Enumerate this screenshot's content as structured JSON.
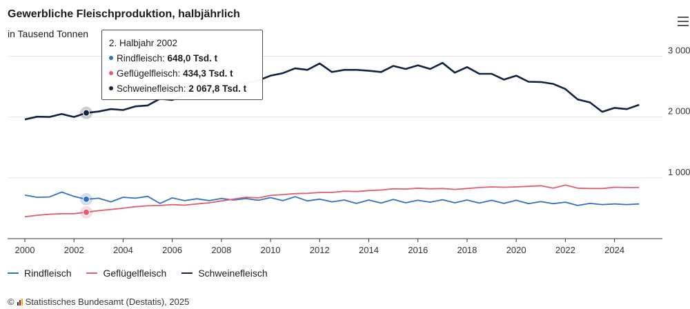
{
  "colors": {
    "rind": "#2e6fc7",
    "gefluegel": "#e05d6f",
    "schwein": "#0f2240",
    "grid": "#e6e6e6",
    "axis": "#333333"
  },
  "chart_data": {
    "type": "line",
    "title": "Gewerbliche Fleischproduktion, halbjährlich",
    "subtitle": "in Tausend Tonnen",
    "xlabel": "",
    "ylabel": "",
    "xlim": [
      2000,
      2025.5
    ],
    "ylim": [
      0,
      3300
    ],
    "x_ticks": [
      "2000",
      "2002",
      "2004",
      "2006",
      "2008",
      "2010",
      "2012",
      "2014",
      "2016",
      "2018",
      "2020",
      "2022",
      "2024"
    ],
    "y_ticks": [
      "1 000",
      "2 000",
      "3 000"
    ],
    "y_tick_values": [
      1000,
      2000,
      3000
    ],
    "grid": true,
    "legend_position": "bottom-left",
    "x": [
      "2000-H1",
      "2000-H2",
      "2001-H1",
      "2001-H2",
      "2002-H1",
      "2002-H2",
      "2003-H1",
      "2003-H2",
      "2004-H1",
      "2004-H2",
      "2005-H1",
      "2005-H2",
      "2006-H1",
      "2006-H2",
      "2007-H1",
      "2007-H2",
      "2008-H1",
      "2008-H2",
      "2009-H1",
      "2009-H2",
      "2010-H1",
      "2010-H2",
      "2011-H1",
      "2011-H2",
      "2012-H1",
      "2012-H2",
      "2013-H1",
      "2013-H2",
      "2014-H1",
      "2014-H2",
      "2015-H1",
      "2015-H2",
      "2016-H1",
      "2016-H2",
      "2017-H1",
      "2017-H2",
      "2018-H1",
      "2018-H2",
      "2019-H1",
      "2019-H2",
      "2020-H1",
      "2020-H2",
      "2021-H1",
      "2021-H2",
      "2022-H1",
      "2022-H2",
      "2023-H1",
      "2023-H2",
      "2024-H1",
      "2024-H2",
      "2025-H1"
    ],
    "series": [
      {
        "name": "Rindfleisch",
        "key": "rind",
        "values": [
          715,
          680,
          685,
          765,
          695,
          648,
          665,
          605,
          680,
          665,
          695,
          580,
          670,
          625,
          655,
          625,
          660,
          635,
          660,
          630,
          675,
          625,
          690,
          620,
          650,
          605,
          635,
          580,
          635,
          585,
          645,
          590,
          630,
          600,
          640,
          590,
          635,
          585,
          630,
          580,
          630,
          575,
          610,
          575,
          600,
          545,
          580,
          560,
          570,
          560,
          570
        ]
      },
      {
        "name": "Geflügelfleisch",
        "key": "gefluegel",
        "values": [
          360,
          385,
          400,
          410,
          410,
          434,
          460,
          480,
          500,
          525,
          540,
          545,
          560,
          550,
          570,
          590,
          620,
          650,
          680,
          670,
          710,
          725,
          740,
          745,
          760,
          760,
          780,
          775,
          790,
          800,
          820,
          815,
          830,
          820,
          825,
          810,
          825,
          840,
          850,
          845,
          850,
          860,
          870,
          830,
          880,
          830,
          825,
          825,
          845,
          840,
          840
        ]
      },
      {
        "name": "Schweinefleisch",
        "key": "schwein",
        "values": [
          1960,
          2005,
          2000,
          2050,
          2000,
          2067.8,
          2090,
          2130,
          2115,
          2175,
          2190,
          2300,
          2280,
          2350,
          2340,
          2450,
          2440,
          2550,
          2560,
          2600,
          2680,
          2720,
          2800,
          2775,
          2880,
          2740,
          2775,
          2775,
          2760,
          2740,
          2840,
          2790,
          2850,
          2790,
          2890,
          2730,
          2820,
          2710,
          2710,
          2615,
          2680,
          2580,
          2575,
          2545,
          2460,
          2290,
          2240,
          2085,
          2150,
          2130,
          2200
        ]
      }
    ],
    "highlight_index": 5
  },
  "tooltip": {
    "title": "2. Halbjahr 2002",
    "rows": [
      {
        "key": "rind",
        "label": "Rindfleisch:",
        "value": "648,0 Tsd. t"
      },
      {
        "key": "gefluegel",
        "label": "Geflügelfleisch:",
        "value": "434,3 Tsd. t"
      },
      {
        "key": "schwein",
        "label": "Schweinefleisch:",
        "value": "2 067,8 Tsd. t"
      }
    ]
  },
  "legend": [
    {
      "key": "rind",
      "label": "Rindfleisch"
    },
    {
      "key": "gefluegel",
      "label": "Geflügelfleisch"
    },
    {
      "key": "schwein",
      "label": "Schweinefleisch"
    }
  ],
  "credit": "Statistisches Bundesamt (Destatis), 2025",
  "credit_prefix": "©"
}
